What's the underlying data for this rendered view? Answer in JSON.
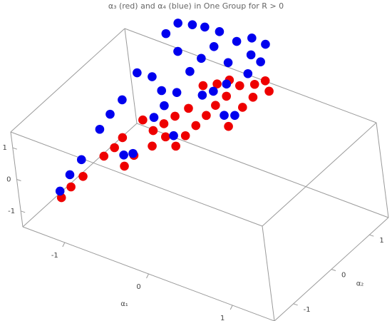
{
  "chart_data": {
    "type": "scatter3d",
    "title": "α₃ (red) and α₄ (blue) in One Group for R > 0",
    "xlabel": "α₁",
    "ylabel": "α₂",
    "xlim": [
      -1.5,
      1.5
    ],
    "ylim": [
      -1.5,
      1.5
    ],
    "zlim": [
      -1.5,
      1.5
    ],
    "xticks": [
      -1,
      0,
      1
    ],
    "yticks": [
      -1,
      0,
      1
    ],
    "zticks": [
      -1,
      0,
      1
    ],
    "series": [
      {
        "color": "#ee0000",
        "x": [
          -1.15,
          -1.13,
          -1.09,
          -1.03,
          -0.99,
          -0.8,
          -0.98,
          -0.78,
          -0.91,
          -0.76,
          -0.68,
          -0.71,
          -0.62,
          -0.66,
          -0.48,
          -0.46,
          -0.59,
          -0.43,
          -0.6,
          -0.4,
          -0.38,
          -0.49,
          -0.34,
          -0.15,
          -0.41,
          -0.29,
          -0.14,
          -0.11,
          -0.17,
          -0.1,
          -0.01
        ],
        "y": [
          -1.16,
          -0.94,
          -0.7,
          -0.26,
          -0.06,
          -0.24,
          0.14,
          -0.02,
          0.54,
          0.47,
          0.25,
          0.65,
          0.48,
          0.84,
          0.43,
          0.65,
          1.05,
          0.87,
          1.48,
          1.09,
          1.3,
          1.61,
          1.51,
          1.11,
          1.76,
          1.76,
          1.48,
          1.7,
          1.89,
          2.02,
          1.91
        ],
        "z": [
          -0.6,
          -0.48,
          -0.37,
          -0.15,
          -0.06,
          -0.26,
          0.05,
          -0.14,
          0.24,
          0.13,
          -0.04,
          0.2,
          0.06,
          0.28,
          -0.04,
          0.07,
          0.37,
          0.18,
          0.61,
          0.29,
          0.4,
          0.63,
          0.5,
          0.17,
          0.67,
          0.61,
          0.38,
          0.49,
          0.63,
          0.67,
          0.55
        ]
      },
      {
        "color": "#0000ee",
        "x": [
          -1.2,
          -1.21,
          -1.2,
          -1.22,
          -1.22,
          -1.2,
          -0.87,
          -0.8,
          -1.23,
          -1.08,
          -0.92,
          -0.83,
          -0.81,
          -0.56,
          -0.78,
          -1.21,
          -1.01,
          -1.17,
          -1.04,
          -0.79,
          -0.92,
          -0.77,
          -0.73,
          -0.77,
          -0.55,
          -0.48,
          -0.41,
          -0.52,
          -0.16,
          -0.25,
          -0.57,
          -0.46,
          -0.37,
          -0.29,
          -0.31,
          -0.25
        ],
        "y": [
          -1.08,
          -0.78,
          -0.48,
          0.08,
          0.37,
          0.66,
          -0.09,
          0.0,
          1.15,
          1.21,
          1.09,
          0.66,
          0.9,
          0.56,
          1.18,
          1.91,
          1.76,
          2.15,
          2.24,
          1.57,
          2.3,
          1.84,
          2.1,
          2.35,
          1.34,
          1.48,
          1.68,
          1.99,
          1.31,
          1.23,
          2.35,
          2.51,
          2.27,
          1.99,
          2.53,
          2.25
        ],
        "z": [
          -0.53,
          -0.35,
          -0.19,
          0.14,
          0.3,
          0.46,
          -0.14,
          -0.12,
          0.75,
          0.71,
          0.56,
          0.27,
          0.4,
          0.07,
          0.54,
          1.18,
          0.98,
          1.29,
          1.27,
          0.77,
          1.25,
          0.91,
          1.04,
          1.2,
          0.51,
          0.55,
          0.63,
          0.86,
          0.29,
          0.29,
          1.09,
          1.13,
          0.95,
          0.74,
          1.06,
          0.87
        ]
      }
    ]
  }
}
